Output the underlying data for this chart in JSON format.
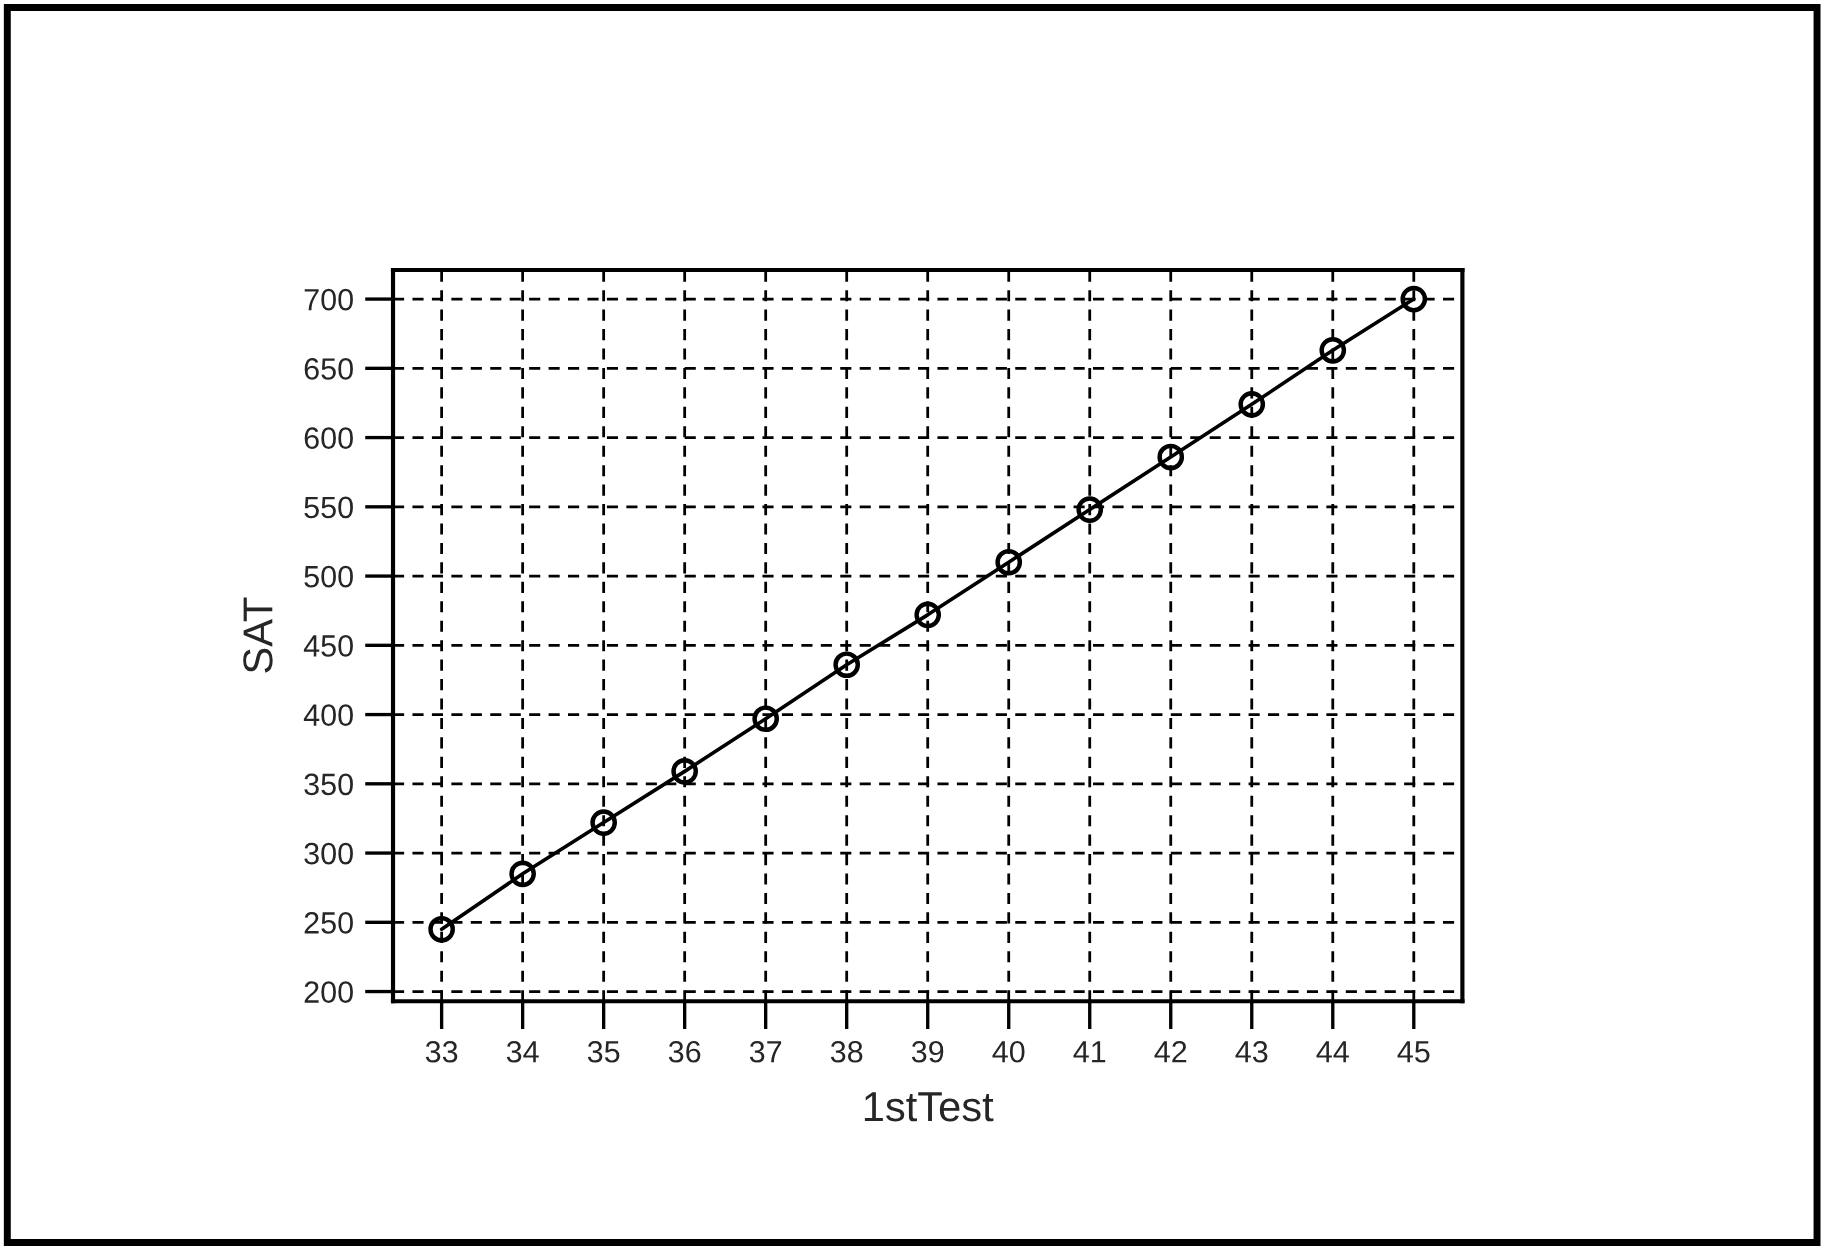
{
  "chart_data": {
    "type": "line",
    "xlabel": "1stTest",
    "ylabel": "SAT",
    "x": [
      33,
      34,
      35,
      36,
      37,
      38,
      39,
      40,
      41,
      42,
      43,
      44,
      45
    ],
    "series": [
      {
        "color": "#000000",
        "values": [
          245,
          285,
          322,
          359,
          397,
          436,
          472,
          510,
          548,
          586,
          624,
          663,
          700
        ]
      }
    ],
    "xlim": [
      32.4,
      45.6
    ],
    "xticks": [
      33,
      34,
      35,
      36,
      37,
      38,
      39,
      40,
      41,
      42,
      43,
      44,
      45
    ],
    "ylim": [
      193,
      721
    ],
    "yticks": [
      200,
      250,
      300,
      350,
      400,
      450,
      500,
      550,
      600,
      650,
      700
    ],
    "grid": true,
    "marker": "circle",
    "line_style": "solid",
    "legend": false
  }
}
